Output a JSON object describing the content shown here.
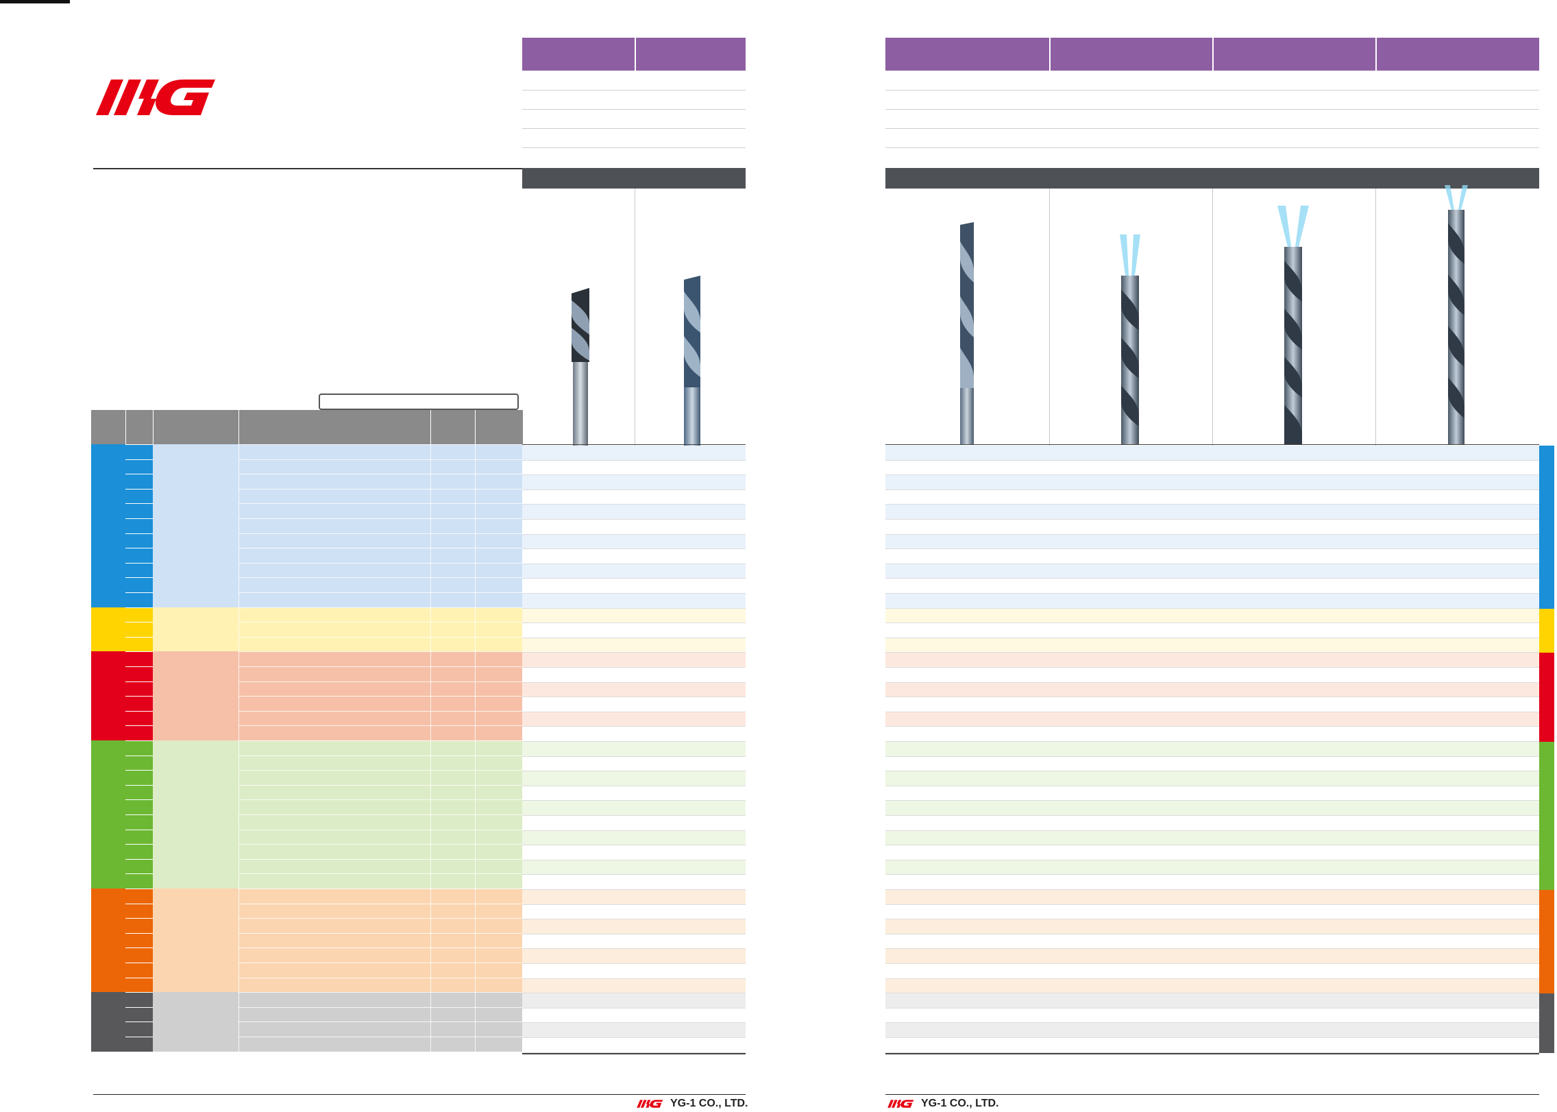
{
  "brand": {
    "company_name": "YG-1 CO., LTD.",
    "logo_icon": "yg1-logo",
    "logo_color": "#e60012"
  },
  "colors": {
    "header_purple": "#8e5ea2",
    "header_grey": "#4e5155",
    "groups": [
      {
        "name": "blue",
        "primary": "#1b8fd8",
        "light": "#cfe1f5",
        "row_tint": "#e9f2fb"
      },
      {
        "name": "yellow",
        "primary": "#ffd400",
        "light": "#fff2b3",
        "row_tint": "#fff9e1"
      },
      {
        "name": "red",
        "primary": "#e2001a",
        "light": "#f6c0a8",
        "row_tint": "#fde8df"
      },
      {
        "name": "green",
        "primary": "#6cb833",
        "light": "#dcecc6",
        "row_tint": "#eef6e4"
      },
      {
        "name": "orange",
        "primary": "#ec6608",
        "light": "#fbd5b0",
        "row_tint": "#fdeddc"
      },
      {
        "name": "grey",
        "primary": "#58585a",
        "light": "#cfcfcf",
        "row_tint": "#ededed"
      }
    ]
  },
  "icons": {
    "drill_bits": [
      "drill-icon",
      "drill-icon",
      "drill-icon",
      "coolant-drill-icon",
      "coolant-drill-icon",
      "coolant-drill-icon"
    ]
  }
}
